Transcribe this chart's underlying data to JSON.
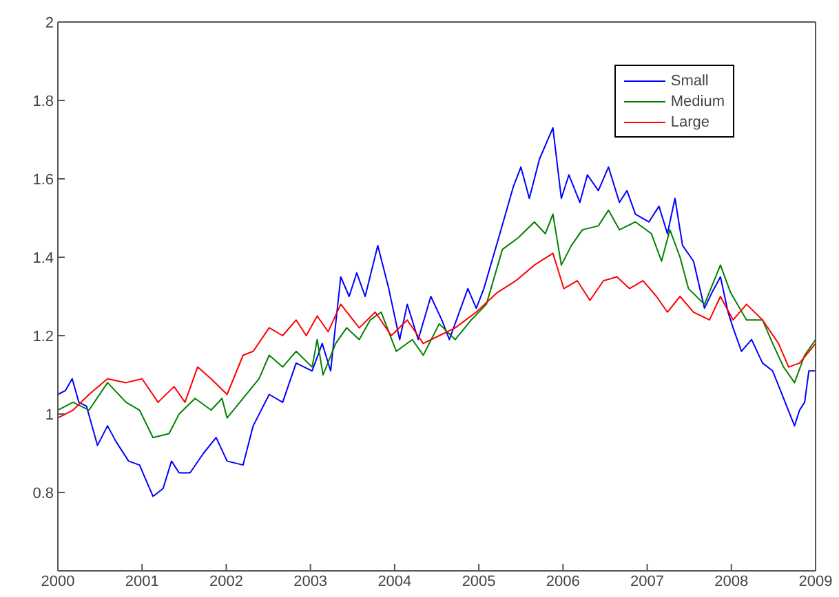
{
  "chart_data": {
    "type": "line",
    "xlim": [
      2000,
      2009
    ],
    "xticks": [
      2000,
      2001,
      2002,
      2003,
      2004,
      2005,
      2006,
      2007,
      2008,
      2009
    ],
    "ylim": [
      0.6,
      2
    ],
    "yticks": [
      0.8,
      1,
      1.2,
      1.4,
      1.6,
      1.8,
      2
    ],
    "legend": "top right",
    "marker": "none",
    "line_style": "solid",
    "series": [
      {
        "name": "Small",
        "color": "#0000ff",
        "x": [
          2000.0,
          2000.09,
          2000.17,
          2000.25,
          2000.34,
          2000.47,
          2000.59,
          2000.69,
          2000.84,
          2000.97,
          2001.13,
          2001.25,
          2001.35,
          2001.44,
          2001.57,
          2001.73,
          2001.88,
          2002.01,
          2002.2,
          2002.32,
          2002.51,
          2002.67,
          2002.83,
          2003.02,
          2003.14,
          2003.24,
          2003.36,
          2003.46,
          2003.55,
          2003.65,
          2003.8,
          2003.93,
          2004.06,
          2004.15,
          2004.28,
          2004.43,
          2004.56,
          2004.65,
          2004.87,
          2004.97,
          2005.06,
          2005.25,
          2005.41,
          2005.5,
          2005.6,
          2005.72,
          2005.88,
          2005.98,
          2006.07,
          2006.2,
          2006.29,
          2006.42,
          2006.54,
          2006.67,
          2006.76,
          2006.86,
          2007.02,
          2007.14,
          2007.24,
          2007.33,
          2007.42,
          2007.55,
          2007.68,
          2007.77,
          2007.87,
          2007.96,
          2008.02,
          2008.12,
          2008.24,
          2008.37,
          2008.49,
          2008.62,
          2008.75,
          2008.81,
          2008.87,
          2008.92,
          2009.0
        ],
        "values": [
          1.05,
          1.06,
          1.09,
          1.03,
          1.02,
          0.92,
          0.97,
          0.93,
          0.88,
          0.87,
          0.79,
          0.81,
          0.88,
          0.85,
          0.85,
          0.9,
          0.94,
          0.88,
          0.87,
          0.97,
          1.05,
          1.03,
          1.13,
          1.11,
          1.18,
          1.11,
          1.35,
          1.3,
          1.36,
          1.3,
          1.43,
          1.32,
          1.19,
          1.28,
          1.19,
          1.3,
          1.24,
          1.19,
          1.32,
          1.27,
          1.32,
          1.46,
          1.58,
          1.63,
          1.55,
          1.65,
          1.73,
          1.55,
          1.61,
          1.54,
          1.61,
          1.57,
          1.63,
          1.54,
          1.57,
          1.51,
          1.49,
          1.53,
          1.46,
          1.55,
          1.43,
          1.39,
          1.27,
          1.31,
          1.35,
          1.26,
          1.22,
          1.16,
          1.19,
          1.13,
          1.11,
          1.04,
          0.97,
          1.01,
          1.03,
          1.11,
          1.11
        ]
      },
      {
        "name": "Medium",
        "color": "#008000",
        "x": [
          2000.0,
          2000.18,
          2000.37,
          2000.59,
          2000.81,
          2000.97,
          2001.13,
          2001.32,
          2001.44,
          2001.63,
          2001.82,
          2001.95,
          2002.01,
          2002.2,
          2002.39,
          2002.51,
          2002.67,
          2002.83,
          2003.02,
          2003.08,
          2003.15,
          2003.3,
          2003.43,
          2003.58,
          2003.71,
          2003.84,
          2004.02,
          2004.21,
          2004.34,
          2004.53,
          2004.72,
          2004.91,
          2005.09,
          2005.28,
          2005.47,
          2005.66,
          2005.79,
          2005.88,
          2005.98,
          2006.1,
          2006.23,
          2006.42,
          2006.54,
          2006.67,
          2006.86,
          2007.05,
          2007.17,
          2007.27,
          2007.39,
          2007.49,
          2007.68,
          2007.87,
          2007.99,
          2008.18,
          2008.37,
          2008.49,
          2008.62,
          2008.75,
          2008.87,
          2009.0
        ],
        "values": [
          1.01,
          1.03,
          1.01,
          1.08,
          1.03,
          1.01,
          0.94,
          0.95,
          1.0,
          1.04,
          1.01,
          1.04,
          0.99,
          1.04,
          1.09,
          1.15,
          1.12,
          1.16,
          1.12,
          1.19,
          1.1,
          1.18,
          1.22,
          1.19,
          1.24,
          1.26,
          1.16,
          1.19,
          1.15,
          1.23,
          1.19,
          1.24,
          1.28,
          1.42,
          1.45,
          1.49,
          1.46,
          1.51,
          1.38,
          1.43,
          1.47,
          1.48,
          1.52,
          1.47,
          1.49,
          1.46,
          1.39,
          1.47,
          1.4,
          1.32,
          1.28,
          1.38,
          1.31,
          1.24,
          1.24,
          1.18,
          1.12,
          1.08,
          1.15,
          1.19
        ]
      },
      {
        "name": "Large",
        "color": "#ff0000",
        "x": [
          2000.0,
          2000.18,
          2000.37,
          2000.59,
          2000.81,
          2001.0,
          2001.19,
          2001.38,
          2001.51,
          2001.66,
          2001.82,
          2002.01,
          2002.2,
          2002.32,
          2002.51,
          2002.67,
          2002.83,
          2002.95,
          2003.08,
          2003.21,
          2003.36,
          2003.58,
          2003.77,
          2003.96,
          2004.15,
          2004.34,
          2004.53,
          2004.72,
          2004.97,
          2005.22,
          2005.44,
          2005.66,
          2005.88,
          2006.01,
          2006.17,
          2006.32,
          2006.48,
          2006.64,
          2006.79,
          2006.95,
          2007.11,
          2007.24,
          2007.39,
          2007.55,
          2007.74,
          2007.87,
          2008.02,
          2008.18,
          2008.37,
          2008.56,
          2008.68,
          2008.81,
          2009.0
        ],
        "values": [
          0.99,
          1.01,
          1.05,
          1.09,
          1.08,
          1.09,
          1.03,
          1.07,
          1.03,
          1.12,
          1.09,
          1.05,
          1.15,
          1.16,
          1.22,
          1.2,
          1.24,
          1.2,
          1.25,
          1.21,
          1.28,
          1.22,
          1.26,
          1.2,
          1.24,
          1.18,
          1.2,
          1.22,
          1.26,
          1.31,
          1.34,
          1.38,
          1.41,
          1.32,
          1.34,
          1.29,
          1.34,
          1.35,
          1.32,
          1.34,
          1.3,
          1.26,
          1.3,
          1.26,
          1.24,
          1.3,
          1.24,
          1.28,
          1.24,
          1.18,
          1.12,
          1.13,
          1.18
        ]
      }
    ]
  }
}
